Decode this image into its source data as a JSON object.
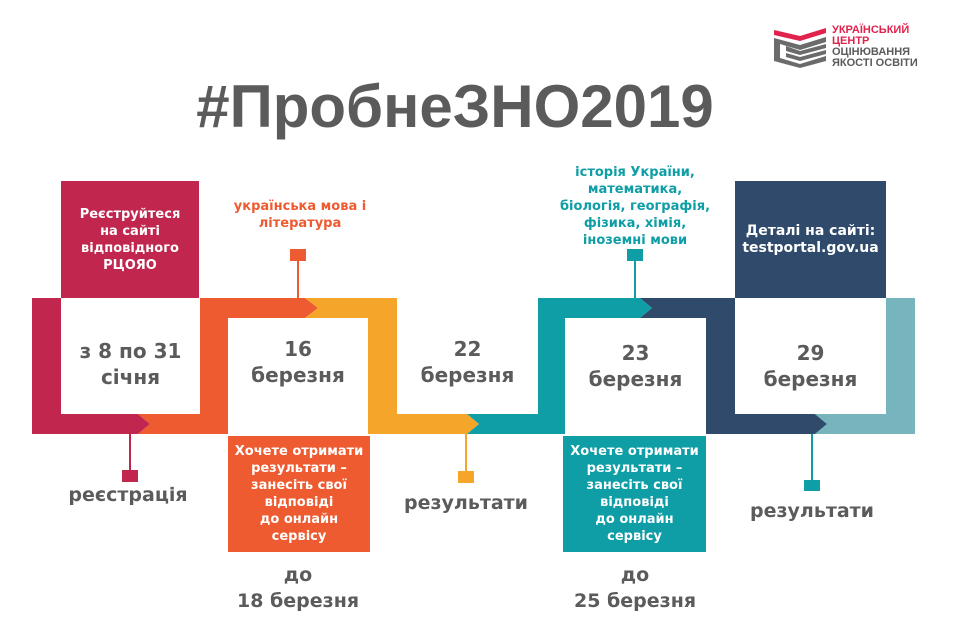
{
  "logo": {
    "line1": "УКРАЇНСЬКИЙ",
    "line2": "ЦЕНТР",
    "line3": "ОЦІНЮВАННЯ",
    "line4": "ЯКОСТІ ОСВІТИ",
    "accent_color": "#e0234d",
    "text_color": "#5b5b5b"
  },
  "title": "#ПробнеЗНО2019",
  "colors": {
    "crimson": "#c1264f",
    "orange": "#ee5b30",
    "yellow": "#f6a52b",
    "teal": "#0f9ea5",
    "navy": "#2f4a6b",
    "light_teal": "#76b4be",
    "text_gray": "#5b5b5b"
  },
  "steps": [
    {
      "date": "з 8 по 31\nсічня",
      "top_box": "Реєструйтеся\nна сайті\nвідповідного\nРЦОЯО",
      "bottom_label": "реєстрація"
    },
    {
      "date": "16\nберезня",
      "top_topic": "українська мова і\nлітература",
      "bottom_box": "Хочете отримати\nрезультати –\nзанесіть свої\nвідповіді\nдо онлайн\nсервісу",
      "deadline": "до\n18 березня"
    },
    {
      "date": "22\nберезня",
      "bottom_label": "результати"
    },
    {
      "date": "23\nберезня",
      "top_topic": "історія України,\nматематика,\nбіологія, географія,\nфізика, хімія,\nіноземні мови",
      "bottom_box": "Хочете отримати\nрезультати –\nзанесіть свої\nвідповіді\nдо онлайн\nсервісу",
      "deadline": "до\n25 березня"
    },
    {
      "date": "29\nберезня",
      "top_box": "Деталі на сайті:\ntestportal.gov.ua",
      "bottom_label": "результати"
    }
  ]
}
